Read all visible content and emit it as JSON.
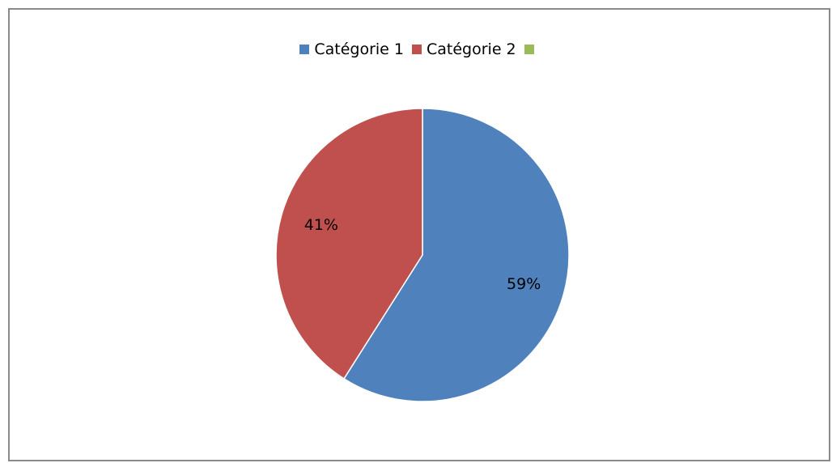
{
  "chart_data": {
    "type": "pie",
    "title": "",
    "categories": [
      "Catégorie 1",
      "Catégorie 2",
      ""
    ],
    "values": [
      59,
      41,
      0
    ],
    "value_labels": [
      "59%",
      "41%",
      ""
    ],
    "colors": [
      "#4F81BD",
      "#C0504D",
      "#9BBB59"
    ],
    "legend_position": "top"
  }
}
